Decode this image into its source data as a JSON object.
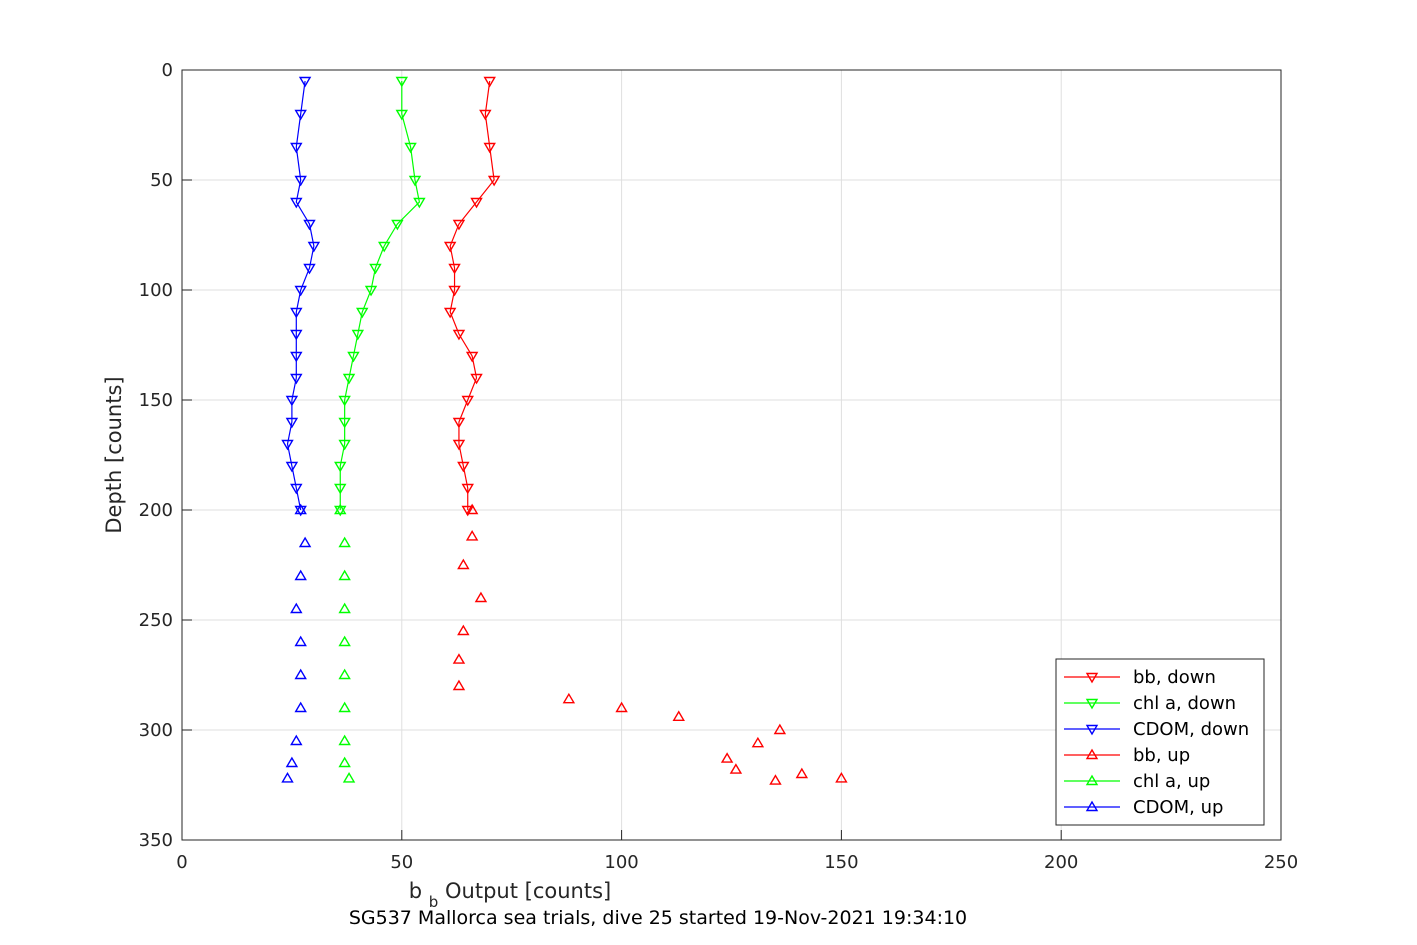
{
  "chart_data": {
    "type": "scatter",
    "xlabel_main": "b",
    "xlabel_sub": "b",
    "xlabel_rest": " Output [counts]",
    "ylabel": "Depth [counts]",
    "caption": "SG537 Mallorca sea trials, dive 25 started 19-Nov-2021 19:34:10",
    "xlim": [
      0,
      250
    ],
    "ylim": [
      0,
      350
    ],
    "y_reversed": true,
    "grid": true,
    "legend_position": "bottom-right",
    "x_ticks": [
      0,
      50,
      100,
      150,
      200,
      250
    ],
    "y_ticks": [
      0,
      50,
      100,
      150,
      200,
      250,
      300,
      350
    ],
    "colors": {
      "red": "#ff0000",
      "green": "#00ff00",
      "blue": "#0000ff",
      "grid": "#dfdfdf",
      "axis": "#262626"
    },
    "series": [
      {
        "name": "bb, down",
        "color": "#ff0000",
        "marker": "triangle-down",
        "y": [
          5,
          20,
          35,
          50,
          60,
          70,
          80,
          90,
          100,
          110,
          120,
          130,
          140,
          150,
          160,
          170,
          180,
          190,
          200
        ],
        "x": [
          70,
          69,
          70,
          71,
          67,
          63,
          61,
          62,
          62,
          61,
          63,
          66,
          67,
          65,
          63,
          63,
          64,
          65,
          65
        ]
      },
      {
        "name": "chl a, down",
        "color": "#00ff00",
        "marker": "triangle-down",
        "y": [
          5,
          20,
          35,
          50,
          60,
          70,
          80,
          90,
          100,
          110,
          120,
          130,
          140,
          150,
          160,
          170,
          180,
          190,
          200
        ],
        "x": [
          50,
          50,
          52,
          53,
          54,
          49,
          46,
          44,
          43,
          41,
          40,
          39,
          38,
          37,
          37,
          37,
          36,
          36,
          36
        ]
      },
      {
        "name": "CDOM, down",
        "color": "#0000ff",
        "marker": "triangle-down",
        "y": [
          5,
          20,
          35,
          50,
          60,
          70,
          80,
          90,
          100,
          110,
          120,
          130,
          140,
          150,
          160,
          170,
          180,
          190,
          200
        ],
        "x": [
          28,
          27,
          26,
          27,
          26,
          29,
          30,
          29,
          27,
          26,
          26,
          26,
          26,
          25,
          25,
          24,
          25,
          26,
          27
        ]
      },
      {
        "name": "bb, up",
        "color": "#ff0000",
        "marker": "triangle-up",
        "y": [
          200,
          212,
          225,
          240,
          255,
          268,
          280,
          286,
          290,
          294,
          300,
          306,
          313,
          318,
          320,
          322,
          323
        ],
        "x": [
          66,
          66,
          64,
          68,
          64,
          63,
          63,
          88,
          100,
          113,
          136,
          131,
          124,
          126,
          141,
          150,
          135
        ]
      },
      {
        "name": "chl a, up",
        "color": "#00ff00",
        "marker": "triangle-up",
        "y": [
          200,
          215,
          230,
          245,
          260,
          275,
          290,
          305,
          315,
          322
        ],
        "x": [
          36,
          37,
          37,
          37,
          37,
          37,
          37,
          37,
          37,
          38
        ]
      },
      {
        "name": "CDOM, up",
        "color": "#0000ff",
        "marker": "triangle-up",
        "y": [
          200,
          215,
          230,
          245,
          260,
          275,
          290,
          305,
          315,
          322
        ],
        "x": [
          27,
          28,
          27,
          26,
          27,
          27,
          27,
          26,
          25,
          24
        ]
      }
    ]
  }
}
